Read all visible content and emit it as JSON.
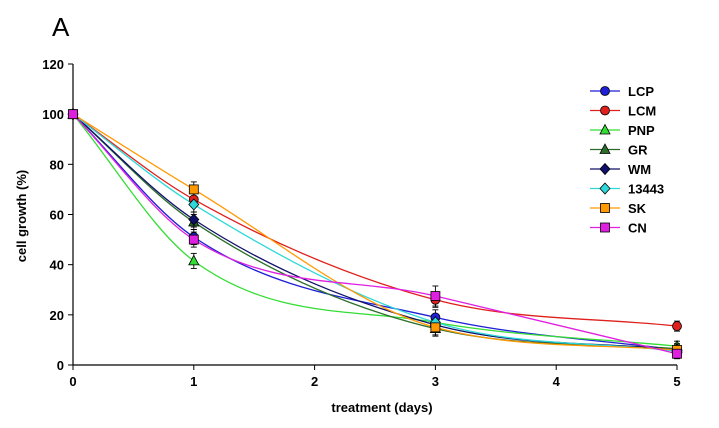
{
  "chart_data": {
    "type": "line",
    "panel_label": "A",
    "xlabel": "treatment (days)",
    "ylabel": "cell growth (%)",
    "xlim": [
      0,
      5
    ],
    "ylim": [
      0,
      120
    ],
    "x_ticks": [
      0,
      1,
      2,
      3,
      4,
      5
    ],
    "y_ticks": [
      0,
      20,
      40,
      60,
      80,
      100,
      120
    ],
    "x": [
      0,
      1,
      3,
      5
    ],
    "grid": false,
    "legend_position": "right",
    "series": [
      {
        "name": "LCP",
        "color": "#1f1fd6",
        "marker": "circle",
        "values": [
          100,
          51,
          19,
          6
        ],
        "errors": [
          0,
          3,
          3,
          2
        ]
      },
      {
        "name": "LCM",
        "color": "#e0201c",
        "marker": "circle",
        "values": [
          100,
          66,
          26,
          15.5
        ],
        "errors": [
          0,
          3,
          3,
          2
        ]
      },
      {
        "name": "PNP",
        "color": "#33dd33",
        "marker": "triangle",
        "values": [
          100,
          41.5,
          17,
          7.5
        ],
        "errors": [
          0,
          3,
          3,
          2
        ]
      },
      {
        "name": "GR",
        "color": "#2a6e2a",
        "marker": "triangle",
        "values": [
          100,
          57,
          14.5,
          6.5
        ],
        "errors": [
          0,
          3,
          3,
          2
        ]
      },
      {
        "name": "WM",
        "color": "#10106a",
        "marker": "diamond",
        "values": [
          100,
          58,
          16,
          6
        ],
        "errors": [
          0,
          3,
          3,
          2
        ]
      },
      {
        "name": "13443",
        "color": "#2fd8d8",
        "marker": "diamond",
        "values": [
          100,
          64,
          17,
          5.5
        ],
        "errors": [
          0,
          3,
          3,
          2
        ]
      },
      {
        "name": "SK",
        "color": "#ff9900",
        "marker": "square",
        "values": [
          100,
          70,
          15,
          6
        ],
        "errors": [
          0,
          3,
          3,
          2
        ]
      },
      {
        "name": "CN",
        "color": "#e020e0",
        "marker": "square",
        "values": [
          100,
          50,
          27.5,
          4.5
        ],
        "errors": [
          0,
          3,
          4,
          2
        ]
      }
    ]
  }
}
